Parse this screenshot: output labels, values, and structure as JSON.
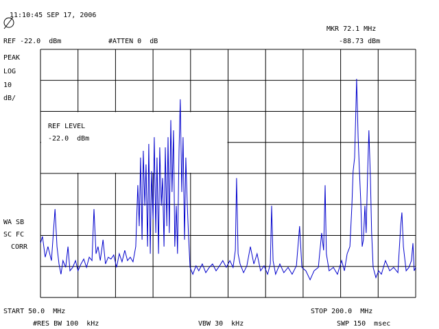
{
  "chart_data": {
    "type": "line",
    "timestamp": "11:10:45 SEP 17, 2006",
    "ref": "REF -22.0  dBm",
    "atten": "#ATTEN 0  dB",
    "marker_freq": "MKR 72.1 MHz",
    "marker_level": "-88.73 dBm",
    "mode_labels": [
      "PEAK",
      "LOG",
      "10",
      "dB/"
    ],
    "ref_level_label": "REF LEVEL",
    "ref_level_value": "-22.0  dBm",
    "side_labels": [
      "WA SB",
      "SC FC",
      "CORR"
    ],
    "start": "START 50.0  MHz",
    "stop": "STOP 200.0  MHz",
    "rbw": "#RES BW 100  kHz",
    "vbw": "VBW 30  kHz",
    "sweep": "SWP 150  msec",
    "xlim": [
      50,
      200
    ],
    "ylim": [
      -102,
      -22
    ],
    "xticks": [
      50,
      65,
      80,
      95,
      110,
      125,
      140,
      155,
      170,
      185,
      200
    ],
    "yticks": [
      -102,
      -92,
      -82,
      -72,
      -62,
      -52,
      -42,
      -32,
      -22
    ],
    "grid": true,
    "color": "#0000cc",
    "x": [
      50,
      50.8,
      51.9,
      53,
      54.4,
      55.8,
      56.6,
      57.4,
      58.2,
      59,
      60.1,
      61,
      61.8,
      62.9,
      64,
      65,
      66.2,
      67.3,
      68.4,
      69.5,
      70.6,
      71.4,
      72.2,
      73,
      73.9,
      75,
      76,
      77.1,
      78.2,
      79.3,
      80.4,
      81.5,
      82.6,
      83.7,
      84.8,
      85.9,
      87,
      88.1,
      88.9,
      89.5,
      90,
      90.6,
      91.1,
      91.7,
      92.2,
      92.8,
      93.3,
      93.9,
      94.4,
      95,
      95.5,
      96.1,
      96.6,
      97.2,
      97.7,
      98.3,
      98.8,
      99.4,
      99.9,
      100.5,
      101,
      101.5,
      102.1,
      102.6,
      103.2,
      103.7,
      104.3,
      104.8,
      105.4,
      105.9,
      106.5,
      107,
      107.6,
      108.1,
      108.7,
      109.2,
      109.8,
      110.9,
      112.2,
      113.3,
      114.7,
      116.1,
      117.5,
      118.8,
      120.2,
      121.6,
      122.9,
      124.3,
      125.7,
      127,
      127.9,
      128.4,
      129,
      129.8,
      131.2,
      132.5,
      133.9,
      135.3,
      136.6,
      138,
      139.4,
      140.8,
      141.9,
      142.4,
      143,
      144,
      145.7,
      147.3,
      149,
      150.6,
      152.3,
      153.6,
      154.5,
      156.1,
      157.8,
      159.4,
      161.1,
      162.4,
      163.2,
      163.8,
      164.3,
      165.4,
      167.1,
      168.7,
      170.4,
      171.5,
      172.6,
      173.7,
      174.5,
      175,
      175.6,
      176.1,
      176.4,
      177,
      177.5,
      178,
      178.6,
      179.1,
      179.7,
      180.2,
      180.8,
      181.3,
      181.9,
      182.4,
      183,
      184.1,
      185.2,
      186.3,
      187.9,
      189.6,
      191.2,
      192.9,
      194,
      194.5,
      195.1,
      196.2,
      197.3,
      198.3,
      198.9,
      199.4,
      200
    ],
    "values": [
      -84.5,
      -82.3,
      -89,
      -85.6,
      -90.1,
      -73.5,
      -85.6,
      -91.2,
      -94.5,
      -90.1,
      -92.3,
      -85.6,
      -93.4,
      -92.3,
      -90.1,
      -93.4,
      -91.2,
      -89.6,
      -92.3,
      -89,
      -90.1,
      -73.5,
      -87.9,
      -85.6,
      -90.1,
      -83.4,
      -91.2,
      -89,
      -89.6,
      -88.3,
      -92.3,
      -87.9,
      -90.5,
      -86.8,
      -90.1,
      -89,
      -90.5,
      -85.6,
      -65.8,
      -79,
      -56.9,
      -83.4,
      -54.7,
      -72.4,
      -59.1,
      -85.6,
      -52.5,
      -87.9,
      -61.3,
      -76.8,
      -50.3,
      -81.2,
      -56.9,
      -87.9,
      -53.6,
      -72.4,
      -63.5,
      -85.6,
      -53.6,
      -79,
      -50.3,
      -81.2,
      -44.8,
      -68,
      -48.1,
      -85.6,
      -72.4,
      -87.9,
      -54.7,
      -38.1,
      -68,
      -50.3,
      -83.4,
      -56.9,
      -72.4,
      -82.3,
      -92.3,
      -94.5,
      -91.8,
      -93.4,
      -91.2,
      -94,
      -92.3,
      -91.2,
      -93.4,
      -91.8,
      -90.1,
      -92.3,
      -90.1,
      -92.3,
      -86.8,
      -63.5,
      -87.9,
      -91.2,
      -94,
      -91.8,
      -85.6,
      -91.2,
      -87.9,
      -93.4,
      -91.8,
      -94.5,
      -91.2,
      -72.4,
      -90.1,
      -94.5,
      -91.2,
      -94,
      -92.3,
      -94.5,
      -91.8,
      -79,
      -92.3,
      -93.4,
      -96.3,
      -93.4,
      -92.3,
      -81.2,
      -86.8,
      -65.8,
      -87.9,
      -93.4,
      -92.3,
      -94.5,
      -90.1,
      -93.4,
      -87.9,
      -85.6,
      -72.4,
      -61.3,
      -56.9,
      -41.4,
      -31.5,
      -50.3,
      -61.3,
      -70.2,
      -85.6,
      -83.4,
      -72.4,
      -81.2,
      -61.3,
      -48.1,
      -63.5,
      -81.2,
      -92.3,
      -95.6,
      -93.4,
      -94.5,
      -90.1,
      -93.4,
      -92.3,
      -94,
      -79,
      -74.6,
      -85.6,
      -93.4,
      -92.3,
      -90.1,
      -84.5,
      -93.4,
      -92.3
    ]
  }
}
